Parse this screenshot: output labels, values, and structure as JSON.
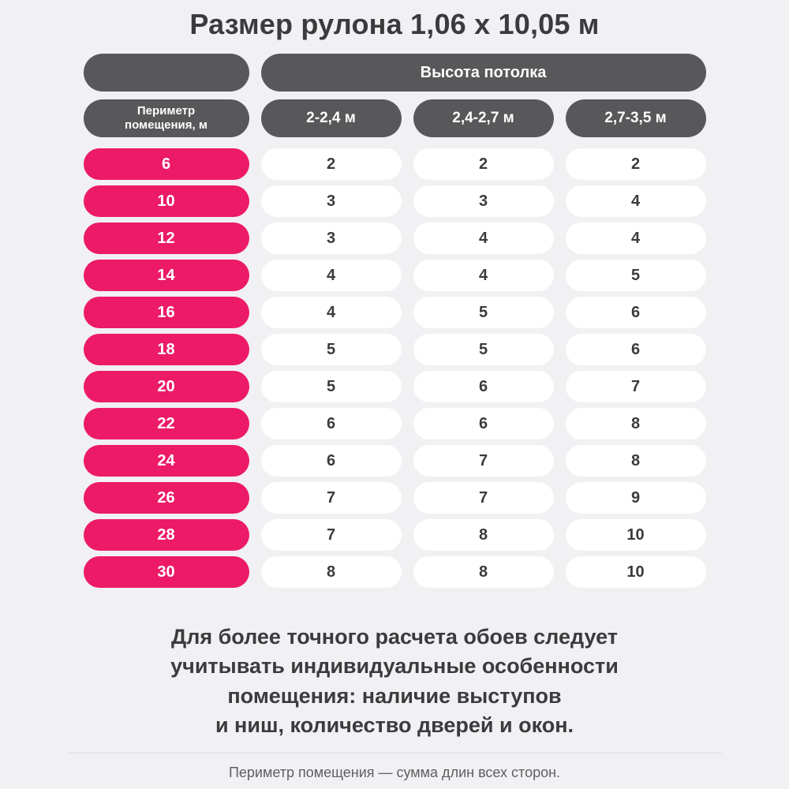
{
  "title": "Размер рулона 1,06 х 10,05 м",
  "table": {
    "group_header": "Высота потолка",
    "row_header_label": "Периметр\nпомещения, м",
    "col_headers": [
      "2-2,4 м",
      "2,4-2,7 м",
      "2,7-3,5 м"
    ],
    "rows": [
      {
        "perimeter": "6",
        "values": [
          "2",
          "2",
          "2"
        ]
      },
      {
        "perimeter": "10",
        "values": [
          "3",
          "3",
          "4"
        ]
      },
      {
        "perimeter": "12",
        "values": [
          "3",
          "4",
          "4"
        ]
      },
      {
        "perimeter": "14",
        "values": [
          "4",
          "4",
          "5"
        ]
      },
      {
        "perimeter": "16",
        "values": [
          "4",
          "5",
          "6"
        ]
      },
      {
        "perimeter": "18",
        "values": [
          "5",
          "5",
          "6"
        ]
      },
      {
        "perimeter": "20",
        "values": [
          "5",
          "6",
          "7"
        ]
      },
      {
        "perimeter": "22",
        "values": [
          "6",
          "6",
          "8"
        ]
      },
      {
        "perimeter": "24",
        "values": [
          "6",
          "7",
          "8"
        ]
      },
      {
        "perimeter": "26",
        "values": [
          "7",
          "7",
          "9"
        ]
      },
      {
        "perimeter": "28",
        "values": [
          "7",
          "8",
          "10"
        ]
      },
      {
        "perimeter": "30",
        "values": [
          "8",
          "8",
          "10"
        ]
      }
    ]
  },
  "footer": {
    "note": "Для более точного расчета обоев следует\nучитывать индивидуальные особенности\nпомещения: наличие выступов\nи ниш, количество дверей и окон.",
    "caption": "Периметр помещения — сумма длин всех сторон."
  },
  "colors": {
    "background": "#f1f0f2",
    "dark_pill": "#58585b",
    "pink_pill": "#ec1a67",
    "white_pill": "#ffffff",
    "text_dark": "#3b3b3d",
    "caption_gray": "#5f5f61"
  },
  "chart_data": {
    "type": "table",
    "title": "Размер рулона 1,06 х 10,05 м",
    "column_group_header": "Высота потолка",
    "columns": [
      "Периметр помещения, м",
      "2-2,4 м",
      "2,4-2,7 м",
      "2,7-3,5 м"
    ],
    "rows": [
      [
        6,
        2,
        2,
        2
      ],
      [
        10,
        3,
        3,
        4
      ],
      [
        12,
        3,
        4,
        4
      ],
      [
        14,
        4,
        4,
        5
      ],
      [
        16,
        4,
        5,
        6
      ],
      [
        18,
        5,
        5,
        6
      ],
      [
        20,
        5,
        6,
        7
      ],
      [
        22,
        6,
        6,
        8
      ],
      [
        24,
        6,
        7,
        8
      ],
      [
        26,
        7,
        7,
        9
      ],
      [
        28,
        7,
        8,
        10
      ],
      [
        30,
        8,
        8,
        10
      ]
    ],
    "notes": [
      "Для более точного расчета обоев следует учитывать индивидуальные особенности помещения: наличие выступов и ниш, количество дверей и окон.",
      "Периметр помещения — сумма длин всех сторон."
    ]
  }
}
